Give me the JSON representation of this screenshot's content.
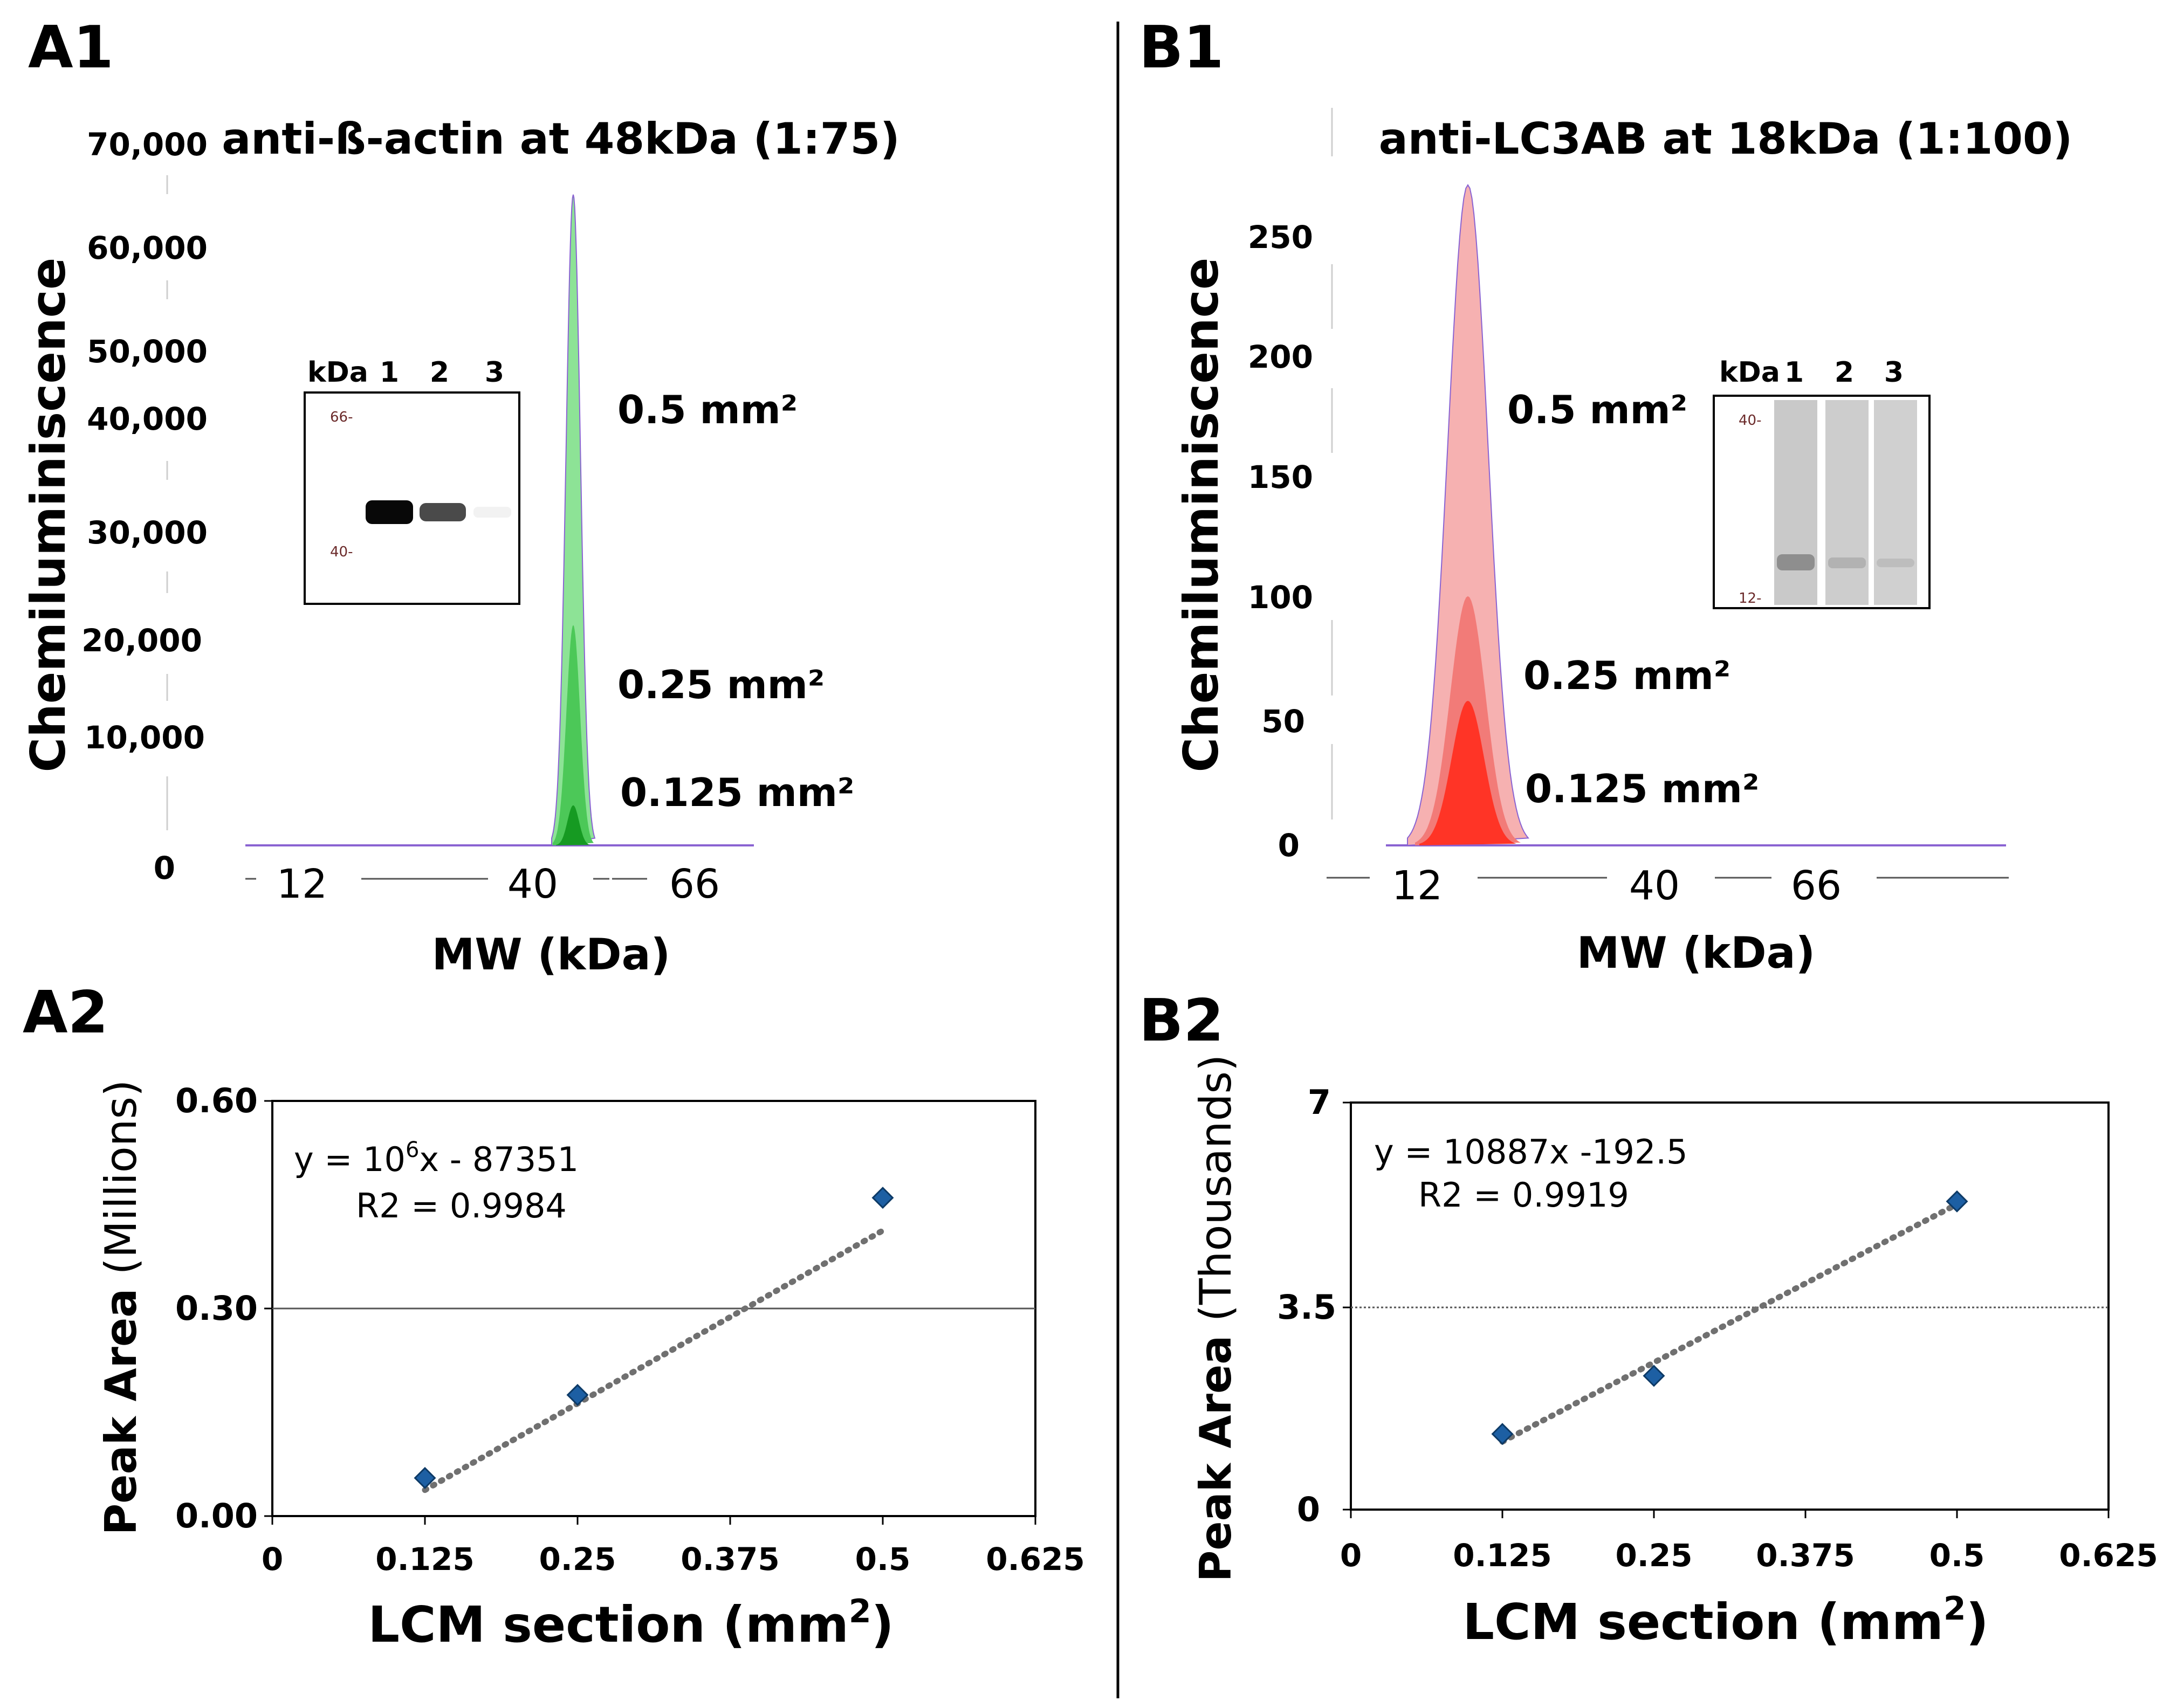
{
  "panel_labels": {
    "a1": "A1",
    "b1": "B1",
    "a2": "A2",
    "b2": "B2"
  },
  "colors": {
    "green_light": "#8de396",
    "green_mid": "#4cc858",
    "green_dark": "#169a22",
    "red_light": "#f6b1b1",
    "red_mid": "#f27b78",
    "red_dark": "#ff3426",
    "baseline_purple": "#8a63d2",
    "marker_blue": "#1d5fa3",
    "trend_gray": "#707070"
  },
  "chart_data": [
    {
      "id": "A1",
      "type": "area",
      "title": "anti-ß-actin at 48kDa (1:75)",
      "ylabel": "Chemiluminiscence",
      "xlabel": "MW (kDa)",
      "ylim": [
        0,
        70000
      ],
      "y_ticks": [
        "70,000",
        "60,000",
        "50,000",
        "40,000",
        "30,000",
        "20,000",
        "10,000",
        "0"
      ],
      "x_ticks": [
        "12",
        "40",
        "66"
      ],
      "series": [
        {
          "name": "0.5 mm²",
          "peak_mw": 48,
          "peak_value": 65000
        },
        {
          "name": "0.25 mm²",
          "peak_mw": 48,
          "peak_value": 22000
        },
        {
          "name": "0.125 mm²",
          "peak_mw": 48,
          "peak_value": 4000
        }
      ],
      "inset": {
        "header": [
          "kDa",
          "1",
          "2",
          "3"
        ],
        "markers": [
          "66-",
          "40-"
        ]
      }
    },
    {
      "id": "B1",
      "type": "area",
      "title": "anti-LC3AB at 18kDa (1:100)",
      "ylabel": "Chemiluminiscence",
      "xlabel": "MW (kDa)",
      "ylim": [
        0,
        270
      ],
      "y_ticks": [
        "250",
        "200",
        "150",
        "100",
        "50",
        "0"
      ],
      "x_ticks": [
        "12",
        "40",
        "66"
      ],
      "series": [
        {
          "name": "0.5 mm²",
          "peak_mw": 18,
          "peak_value": 265
        },
        {
          "name": "0.25 mm²",
          "peak_mw": 18,
          "peak_value": 100
        },
        {
          "name": "0.125 mm²",
          "peak_mw": 18,
          "peak_value": 58
        }
      ],
      "inset": {
        "header": [
          "kDa",
          "1",
          "2",
          "3"
        ],
        "markers": [
          "40-",
          "12-"
        ]
      }
    },
    {
      "id": "A2",
      "type": "scatter",
      "xlabel_main": "LCM section (mm",
      "xlabel_sup": "2",
      "xlabel_close": ")",
      "ylabel_bold": "Peak Area",
      "ylabel_unit": "(Millions)",
      "xlim": [
        0,
        0.625
      ],
      "ylim": [
        0,
        0.6
      ],
      "x_ticks": [
        "0",
        "0.125",
        "0.25",
        "0.375",
        "0.5",
        "0.625"
      ],
      "y_ticks": [
        "0.60",
        "0.30",
        "0.00"
      ],
      "points": [
        {
          "x": 0.125,
          "y": 0.055
        },
        {
          "x": 0.25,
          "y": 0.175
        },
        {
          "x": 0.5,
          "y": 0.46
        }
      ],
      "trendline": {
        "slope": 1000000,
        "intercept": -87351,
        "unit_scale": 1e-06
      },
      "equation_pre": "y = 10",
      "equation_sup": "6",
      "equation_post": "x - 87351",
      "r2": "R2 = 0.9984"
    },
    {
      "id": "B2",
      "type": "scatter",
      "xlabel_main": "LCM section (mm",
      "xlabel_sup": "2",
      "xlabel_close": ")",
      "ylabel_bold": "Peak Area",
      "ylabel_unit": "(Thousands)",
      "xlim": [
        0,
        0.625
      ],
      "ylim": [
        0,
        7
      ],
      "x_ticks": [
        "0",
        "0.125",
        "0.25",
        "0.375",
        "0.5",
        "0.625"
      ],
      "y_ticks": [
        "7",
        "3.5",
        "0"
      ],
      "points": [
        {
          "x": 0.125,
          "y": 1.3
        },
        {
          "x": 0.25,
          "y": 2.3
        },
        {
          "x": 0.5,
          "y": 5.3
        }
      ],
      "trendline": {
        "slope": 10887,
        "intercept": -192.5,
        "unit_scale": 0.001
      },
      "equation": "y = 10887x -192.5",
      "r2": "R2 = 0.9919"
    }
  ]
}
